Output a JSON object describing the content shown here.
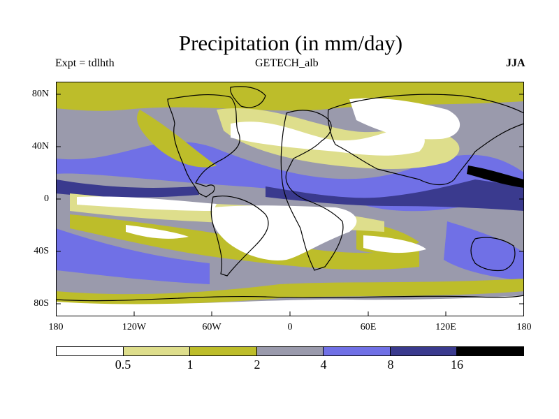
{
  "title": "Precipitation (in mm/day)",
  "left_label": "Expt = tdlhth",
  "center_label": "GETECH_alb",
  "right_label": "JJA",
  "y_axis_labels": [
    "80N",
    "40N",
    "0",
    "40S",
    "80S"
  ],
  "x_axis_labels": [
    "180",
    "120W",
    "60W",
    "0",
    "60E",
    "120E",
    "180"
  ],
  "colorbar": {
    "colors": [
      "#ffffff",
      "#dede8c",
      "#bdbd2a",
      "#9a9aac",
      "#7070e6",
      "#3a3a8e",
      "#000000"
    ],
    "labels": [
      "0.5",
      "1",
      "2",
      "4",
      "8",
      "16"
    ]
  },
  "chart_data": {
    "type": "heatmap",
    "title": "Precipitation (in mm/day)",
    "season": "JJA",
    "experiment": "tdlhth",
    "xlim": [
      -180,
      180
    ],
    "ylim": [
      -90,
      90
    ],
    "contour_levels": [
      0.5,
      1,
      2,
      4,
      8,
      16
    ]
  }
}
